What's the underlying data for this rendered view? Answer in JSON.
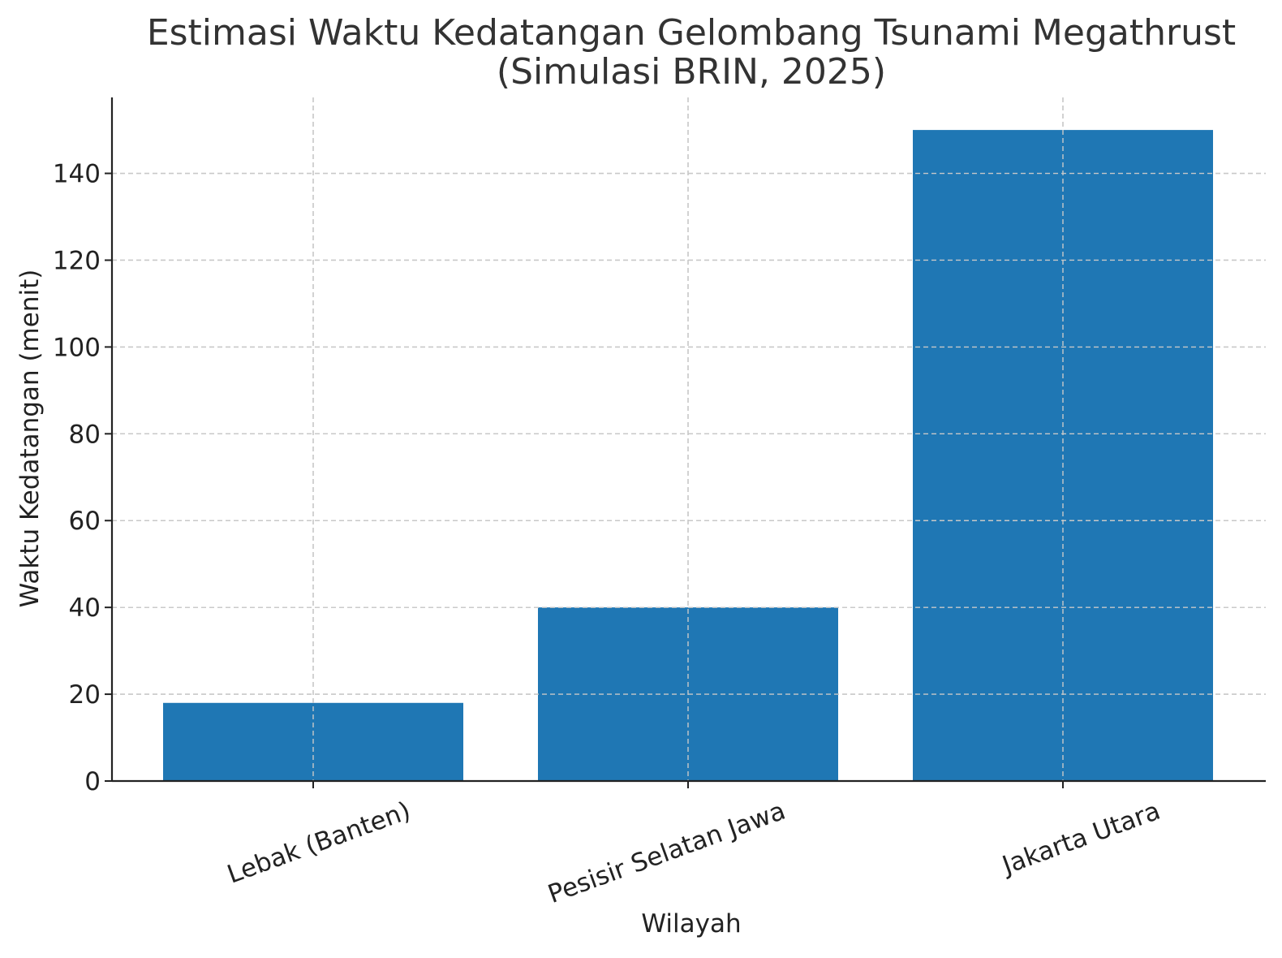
{
  "chart_data": {
    "type": "bar",
    "title_line1": "Estimasi Waktu Kedatangan Gelombang Tsunami Megathrust",
    "title_line2": "(Simulasi BRIN, 2025)",
    "xlabel": "Wilayah",
    "ylabel": "Waktu Kedatangan (menit)",
    "categories": [
      "Lebak (Banten)",
      "Pesisir Selatan Jawa",
      "Jakarta Utara"
    ],
    "values": [
      18,
      40,
      150
    ],
    "ylim": [
      0,
      157.5
    ],
    "yticks": [
      0,
      20,
      40,
      60,
      80,
      100,
      120,
      140
    ],
    "grid": true,
    "bar_color": "#1f77b4",
    "grid_color": "#c8c8c8"
  }
}
